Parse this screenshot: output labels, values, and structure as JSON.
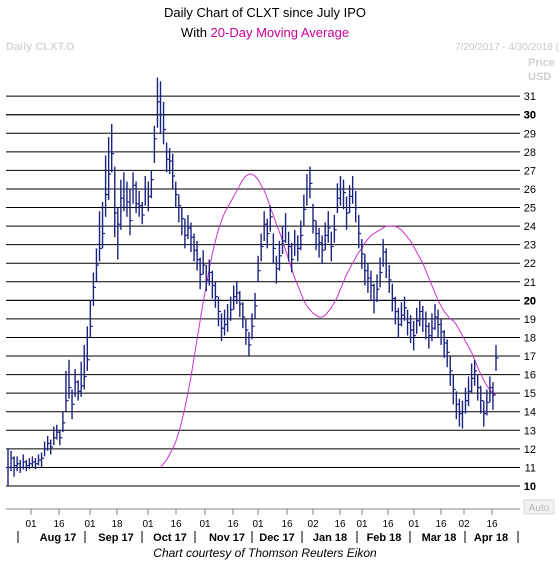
{
  "chart_data": {
    "type": "ohlc-line",
    "title_line1": "Daily Chart of CLXT since July IPO",
    "title_line2_prefix": "With ",
    "title_line2_highlight": "20-Day Moving Average",
    "title_highlight_color": "#cc0099",
    "symbol_label": "Daily CLXT.O",
    "date_range": "7/20/2017 - 4/30/2018 (",
    "price_axis_label_1": "Price",
    "price_axis_label_2": "USD",
    "auto_label": "Auto",
    "credit": "Chart courtesy of Thomson Reuters Eikon",
    "ylim": [
      9.3,
      32.3
    ],
    "y_ticks": [
      11,
      12,
      13,
      14,
      15,
      16,
      17,
      18,
      19,
      20,
      21,
      22,
      23,
      24,
      25,
      26,
      27,
      28,
      29,
      30,
      31
    ],
    "y_bold_ticks": [
      10,
      20,
      30
    ],
    "x_day_ticks": [
      "01",
      "16",
      "01",
      "18",
      "01",
      "16",
      "01",
      "16",
      "01",
      "16",
      "02",
      "16",
      "01",
      "16",
      "01",
      "16",
      "02",
      "16"
    ],
    "x_month_labels": [
      "Aug 17",
      "Sep 17",
      "Oct 17",
      "Nov 17",
      "Dec 17",
      "Jan 18",
      "Feb 18",
      "Mar 18",
      "Apr 18"
    ],
    "price_bar_color": "#1a237e",
    "ma_color": "#cc33cc",
    "price_bars": [
      [
        11.0,
        12.0,
        10.0
      ],
      [
        11.5,
        11.9,
        10.8
      ],
      [
        11.1,
        11.6,
        10.5
      ],
      [
        11.2,
        11.6,
        10.8
      ],
      [
        11.0,
        11.4,
        10.7
      ],
      [
        11.3,
        11.7,
        10.9
      ],
      [
        11.1,
        11.4,
        10.8
      ],
      [
        11.2,
        11.5,
        10.9
      ],
      [
        11.3,
        11.6,
        11.0
      ],
      [
        11.2,
        11.5,
        10.9
      ],
      [
        11.4,
        11.7,
        11.1
      ],
      [
        11.5,
        11.8,
        11.0
      ],
      [
        12.0,
        12.4,
        11.6
      ],
      [
        12.3,
        12.7,
        11.9
      ],
      [
        12.1,
        12.5,
        11.7
      ],
      [
        12.6,
        13.2,
        12.2
      ],
      [
        12.9,
        13.3,
        12.5
      ],
      [
        12.6,
        13.0,
        12.2
      ],
      [
        13.4,
        14.0,
        12.9
      ],
      [
        14.6,
        16.2,
        14.0
      ],
      [
        15.3,
        16.8,
        14.7
      ],
      [
        14.4,
        15.2,
        13.6
      ],
      [
        15.6,
        16.3,
        14.8
      ],
      [
        15.1,
        15.7,
        14.6
      ],
      [
        15.4,
        16.7,
        14.8
      ],
      [
        15.9,
        17.6,
        15.2
      ],
      [
        16.8,
        18.6,
        16.2
      ],
      [
        18.6,
        20.0,
        18.0
      ],
      [
        20.7,
        21.5,
        19.7
      ],
      [
        21.9,
        22.8,
        21.0
      ],
      [
        22.8,
        24.8,
        22.1
      ],
      [
        23.6,
        25.3,
        22.8
      ],
      [
        25.7,
        27.8,
        24.5
      ],
      [
        26.8,
        28.8,
        25.4
      ],
      [
        27.9,
        29.5,
        26.9
      ],
      [
        24.7,
        27.2,
        23.4
      ],
      [
        24.1,
        25.0,
        22.2
      ],
      [
        25.5,
        26.5,
        23.8
      ],
      [
        26.0,
        26.9,
        24.8
      ],
      [
        25.3,
        26.4,
        24.5
      ],
      [
        24.3,
        26.0,
        23.5
      ],
      [
        26.2,
        26.9,
        25.2
      ],
      [
        25.2,
        26.4,
        24.7
      ],
      [
        25.1,
        25.9,
        24.5
      ],
      [
        24.6,
        25.3,
        24.1
      ],
      [
        26.0,
        26.7,
        25.1
      ],
      [
        25.6,
        26.4,
        24.8
      ],
      [
        26.5,
        27.0,
        25.5
      ],
      [
        28.7,
        29.4,
        27.4
      ],
      [
        30.7,
        32.0,
        29.3
      ],
      [
        31.0,
        31.8,
        29.0
      ],
      [
        29.2,
        30.7,
        28.4
      ],
      [
        27.6,
        28.5,
        26.9
      ],
      [
        27.5,
        28.2,
        26.8
      ],
      [
        26.7,
        27.9,
        26.0
      ],
      [
        25.7,
        26.4,
        25.0
      ],
      [
        25.1,
        25.7,
        24.2
      ],
      [
        24.4,
        25.0,
        23.5
      ],
      [
        23.5,
        24.4,
        22.8
      ],
      [
        23.9,
        24.6,
        23.3
      ],
      [
        23.4,
        24.2,
        22.6
      ],
      [
        22.7,
        23.6,
        22.1
      ],
      [
        22.2,
        23.2,
        21.6
      ],
      [
        21.4,
        22.3,
        20.6
      ],
      [
        21.9,
        22.7,
        21.4
      ],
      [
        21.1,
        21.9,
        20.5
      ],
      [
        21.5,
        22.2,
        20.8
      ],
      [
        20.8,
        21.6,
        20.1
      ],
      [
        20.2,
        21.0,
        19.6
      ],
      [
        19.4,
        20.2,
        18.6
      ],
      [
        18.5,
        19.3,
        17.8
      ],
      [
        18.7,
        19.5,
        18.1
      ],
      [
        19.0,
        19.8,
        18.3
      ],
      [
        19.5,
        20.2,
        18.9
      ],
      [
        20.2,
        20.8,
        19.5
      ],
      [
        20.4,
        21.0,
        19.8
      ],
      [
        19.8,
        20.5,
        19.1
      ],
      [
        19.1,
        19.9,
        18.5
      ],
      [
        18.4,
        19.0,
        17.6
      ],
      [
        17.6,
        18.3,
        17.0
      ],
      [
        18.6,
        19.3,
        17.9
      ],
      [
        19.7,
        20.4,
        19.0
      ],
      [
        21.6,
        22.4,
        21.0
      ],
      [
        22.9,
        23.6,
        22.1
      ],
      [
        24.1,
        24.8,
        23.2
      ],
      [
        23.6,
        24.4,
        22.8
      ],
      [
        24.5,
        25.1,
        23.7
      ],
      [
        22.8,
        23.6,
        22.0
      ],
      [
        21.7,
        22.4,
        20.9
      ],
      [
        22.4,
        23.2,
        21.6
      ],
      [
        23.2,
        24.0,
        22.5
      ],
      [
        24.0,
        24.7,
        23.1
      ],
      [
        22.9,
        23.7,
        22.1
      ],
      [
        22.2,
        23.1,
        21.5
      ],
      [
        23.0,
        23.8,
        22.4
      ],
      [
        22.8,
        23.5,
        22.1
      ],
      [
        23.5,
        24.3,
        22.7
      ],
      [
        24.9,
        25.7,
        24.0
      ],
      [
        26.0,
        26.8,
        25.1
      ],
      [
        26.3,
        27.2,
        25.5
      ],
      [
        24.3,
        25.2,
        23.6
      ],
      [
        23.6,
        24.3,
        22.7
      ],
      [
        23.1,
        23.9,
        22.3
      ],
      [
        22.7,
        23.5,
        22.0
      ],
      [
        23.5,
        24.2,
        22.7
      ],
      [
        23.9,
        24.8,
        23.1
      ],
      [
        22.9,
        23.7,
        22.1
      ],
      [
        23.8,
        24.6,
        23.1
      ],
      [
        25.5,
        26.3,
        24.7
      ],
      [
        26.0,
        26.7,
        25.1
      ],
      [
        25.8,
        26.5,
        24.9
      ],
      [
        24.7,
        25.6,
        23.8
      ],
      [
        25.6,
        26.2,
        24.7
      ],
      [
        26.0,
        26.7,
        25.2
      ],
      [
        25.0,
        25.9,
        24.2
      ],
      [
        23.6,
        24.6,
        22.8
      ],
      [
        22.5,
        23.3,
        21.7
      ],
      [
        21.6,
        22.5,
        20.8
      ],
      [
        21.2,
        22.0,
        20.4
      ],
      [
        20.8,
        21.6,
        20.0
      ],
      [
        20.0,
        20.9,
        19.3
      ],
      [
        20.6,
        21.4,
        19.9
      ],
      [
        21.5,
        22.3,
        20.7
      ],
      [
        22.6,
        23.3,
        21.8
      ],
      [
        22.0,
        22.8,
        21.2
      ],
      [
        21.1,
        21.9,
        20.4
      ],
      [
        20.1,
        20.9,
        19.4
      ],
      [
        19.4,
        20.2,
        18.7
      ],
      [
        18.7,
        19.6,
        18.0
      ],
      [
        19.2,
        19.9,
        18.6
      ],
      [
        19.6,
        20.2,
        18.9
      ],
      [
        18.8,
        19.5,
        18.1
      ],
      [
        18.4,
        19.2,
        17.7
      ],
      [
        18.1,
        18.9,
        17.3
      ],
      [
        18.9,
        19.6,
        18.2
      ],
      [
        19.4,
        20.0,
        18.6
      ],
      [
        19.0,
        19.7,
        18.3
      ],
      [
        18.6,
        19.4,
        17.9
      ],
      [
        18.1,
        18.8,
        17.4
      ],
      [
        18.5,
        19.3,
        17.8
      ],
      [
        19.1,
        19.8,
        18.4
      ],
      [
        18.7,
        19.5,
        18.0
      ],
      [
        18.3,
        19.0,
        17.6
      ],
      [
        17.7,
        18.4,
        16.9
      ],
      [
        17.2,
        17.9,
        16.4
      ],
      [
        16.2,
        17.0,
        15.4
      ],
      [
        15.2,
        16.0,
        14.4
      ],
      [
        14.4,
        15.1,
        13.6
      ],
      [
        13.9,
        14.7,
        13.2
      ],
      [
        14.0,
        14.6,
        13.1
      ],
      [
        14.6,
        15.3,
        13.9
      ],
      [
        15.1,
        15.9,
        14.3
      ],
      [
        15.8,
        16.6,
        15.0
      ],
      [
        16.2,
        16.8,
        15.4
      ],
      [
        15.3,
        16.0,
        14.6
      ],
      [
        14.6,
        15.4,
        13.9
      ],
      [
        13.9,
        14.6,
        13.2
      ],
      [
        14.5,
        15.2,
        13.8
      ],
      [
        15.3,
        15.9,
        14.5
      ],
      [
        14.9,
        15.6,
        14.1
      ],
      [
        16.9,
        17.6,
        16.2
      ]
    ],
    "ma_values": [
      11.0,
      11.2,
      11.4,
      11.7,
      12.0,
      12.4,
      12.9,
      13.5,
      14.2,
      15.0,
      15.9,
      16.9,
      17.9,
      18.9,
      19.9,
      20.8,
      21.7,
      22.5,
      23.2,
      23.8,
      24.3,
      24.7,
      25.0,
      25.3,
      25.6,
      25.9,
      26.2,
      26.5,
      26.7,
      26.8,
      26.8,
      26.7,
      26.5,
      26.2,
      25.9,
      25.5,
      25.0,
      24.6,
      24.1,
      23.7,
      23.2,
      22.7,
      22.2,
      21.7,
      21.2,
      20.8,
      20.4,
      20.0,
      19.7,
      19.5,
      19.3,
      19.2,
      19.1,
      19.1,
      19.2,
      19.4,
      19.6,
      19.9,
      20.2,
      20.6,
      21.0,
      21.4,
      21.7,
      22.0,
      22.3,
      22.6,
      22.8,
      23.1,
      23.3,
      23.5,
      23.6,
      23.7,
      23.8,
      23.9,
      24.0,
      24.0,
      24.0,
      24.0,
      23.9,
      23.8,
      23.6,
      23.4,
      23.2,
      22.9,
      22.6,
      22.3,
      22.0,
      21.6,
      21.2,
      20.8,
      20.4,
      20.0,
      19.7,
      19.4,
      19.2,
      19.0,
      18.9,
      18.7,
      18.4,
      18.1,
      17.8,
      17.5,
      17.2,
      16.8,
      16.4,
      16.0,
      15.7,
      15.4,
      15.2,
      15.0,
      14.9
    ]
  }
}
